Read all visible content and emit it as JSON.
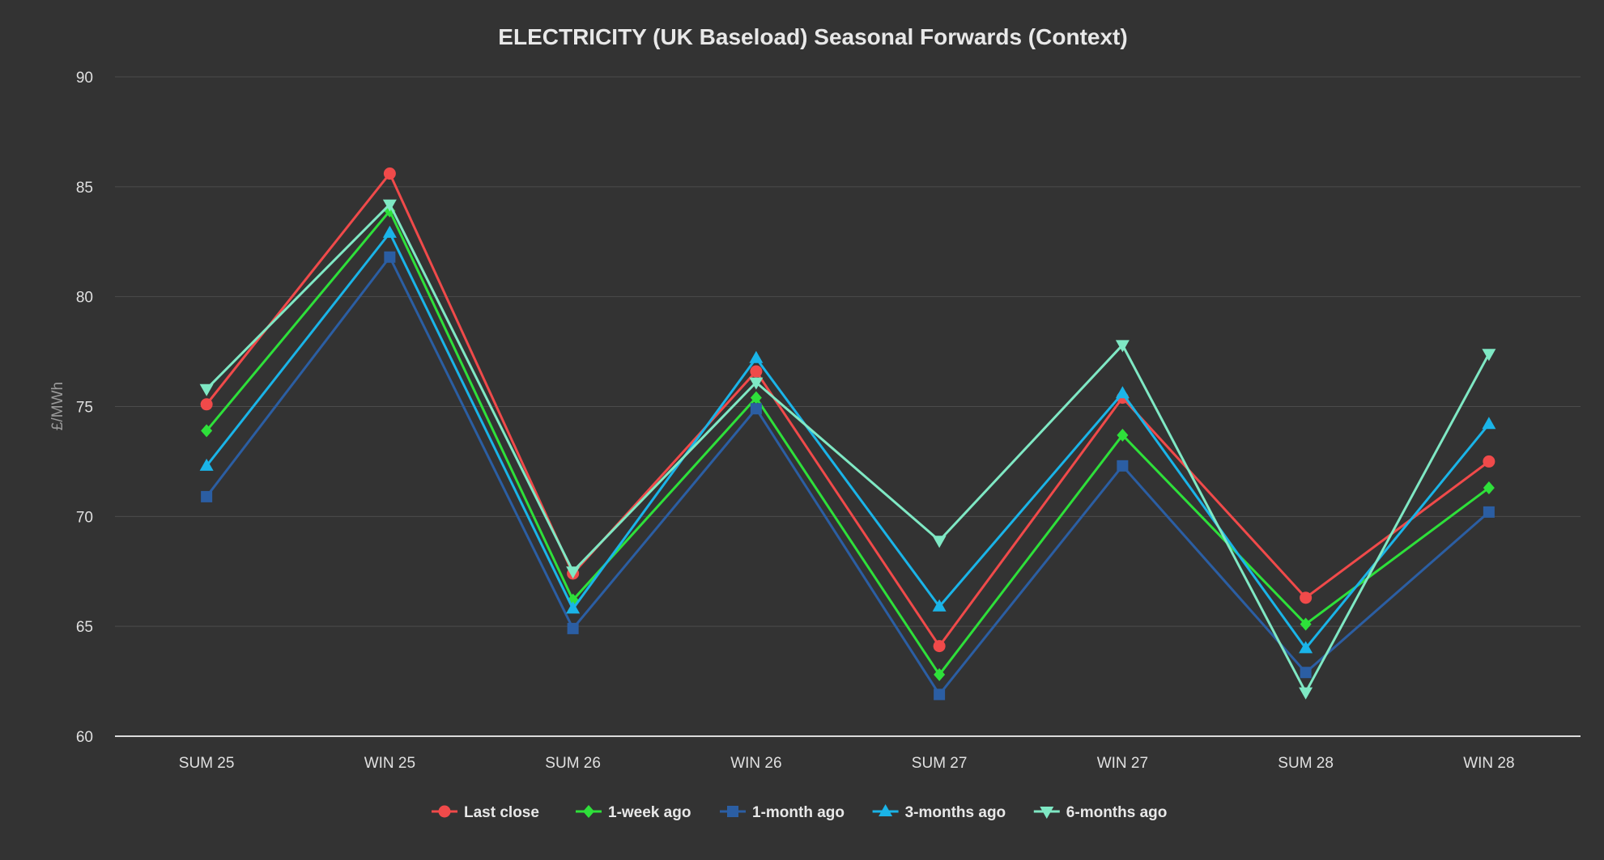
{
  "chart_data": {
    "type": "line",
    "title": "ELECTRICITY (UK Baseload) Seasonal Forwards (Context)",
    "xlabel": "",
    "ylabel": "£/MWh",
    "ylim": [
      60,
      90
    ],
    "yticks": [
      60,
      65,
      70,
      75,
      80,
      85,
      90
    ],
    "grid": true,
    "legend_position": "bottom",
    "categories": [
      "SUM 25",
      "WIN 25",
      "SUM 26",
      "WIN 26",
      "SUM 27",
      "WIN 27",
      "SUM 28",
      "WIN 28"
    ],
    "series": [
      {
        "name": "Last close",
        "color": "#f04a4a",
        "marker": "circle",
        "values": [
          75.1,
          85.6,
          67.4,
          76.6,
          64.1,
          75.4,
          66.3,
          72.5
        ]
      },
      {
        "name": "1-week ago",
        "color": "#2ee03a",
        "marker": "diamond",
        "values": [
          73.9,
          83.9,
          66.2,
          75.4,
          62.8,
          73.7,
          65.1,
          71.3
        ]
      },
      {
        "name": "1-month ago",
        "color": "#2b5ea3",
        "marker": "square",
        "values": [
          70.9,
          81.8,
          64.9,
          74.9,
          61.9,
          72.3,
          62.9,
          70.2
        ]
      },
      {
        "name": "3-months ago",
        "color": "#1ab4e8",
        "marker": "triangle",
        "values": [
          72.3,
          82.9,
          65.8,
          77.2,
          65.9,
          75.6,
          64.0,
          74.2
        ]
      },
      {
        "name": "6-months ago",
        "color": "#7fe8c4",
        "marker": "triangle-down",
        "values": [
          75.8,
          84.2,
          67.5,
          76.1,
          68.9,
          77.8,
          62.0,
          77.4
        ]
      }
    ]
  }
}
